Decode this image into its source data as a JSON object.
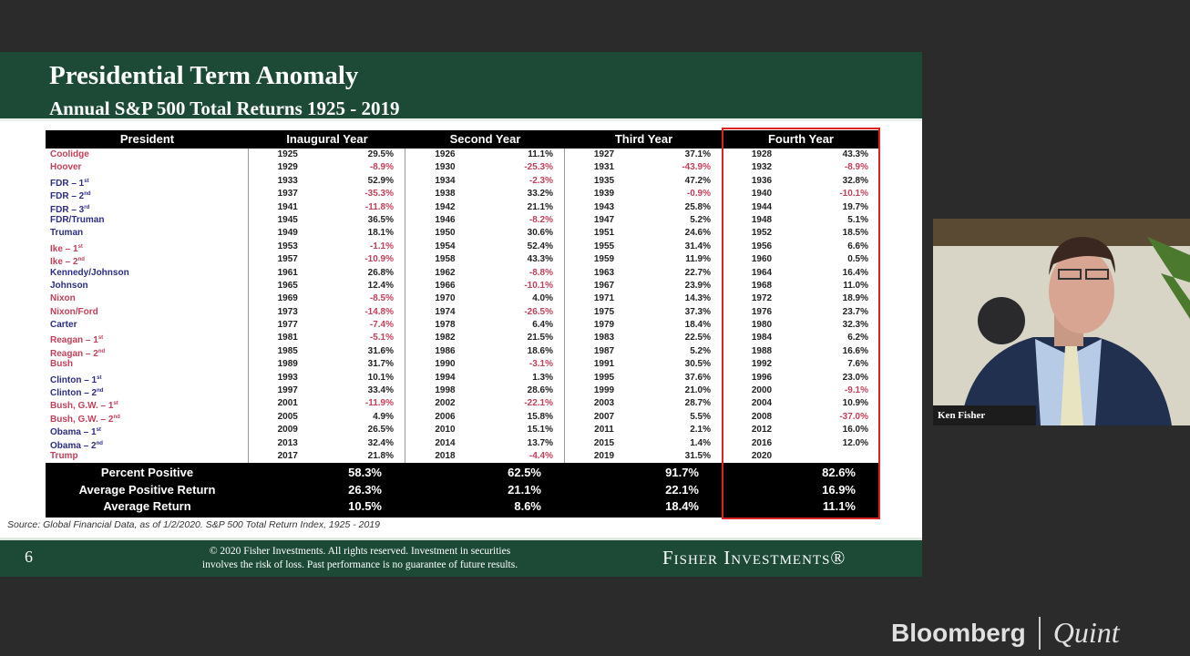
{
  "slide": {
    "title": "Presidential Term Anomaly",
    "subtitle": "Annual S&P 500 Total Returns 1925 - 2019",
    "headers": [
      "President",
      "Inaugural Year",
      "Second Year",
      "Third Year",
      "Fourth Year"
    ],
    "highlight_color": "#dd2222",
    "republican_color": "#c2405a",
    "democrat_color": "#2d2d85",
    "rows": [
      {
        "name": "Coolidge",
        "ord": "",
        "party": "R",
        "cells": [
          [
            "1925",
            "29.5%"
          ],
          [
            "1926",
            "11.1%"
          ],
          [
            "1927",
            "37.1%"
          ],
          [
            "1928",
            "43.3%"
          ]
        ]
      },
      {
        "name": "Hoover",
        "ord": "",
        "party": "R",
        "cells": [
          [
            "1929",
            "-8.9%"
          ],
          [
            "1930",
            "-25.3%"
          ],
          [
            "1931",
            "-43.9%"
          ],
          [
            "1932",
            "-8.9%"
          ]
        ]
      },
      {
        "name": "FDR – 1",
        "ord": "st",
        "party": "D",
        "cells": [
          [
            "1933",
            "52.9%"
          ],
          [
            "1934",
            "-2.3%"
          ],
          [
            "1935",
            "47.2%"
          ],
          [
            "1936",
            "32.8%"
          ]
        ]
      },
      {
        "name": "FDR – 2",
        "ord": "nd",
        "party": "D",
        "cells": [
          [
            "1937",
            "-35.3%"
          ],
          [
            "1938",
            "33.2%"
          ],
          [
            "1939",
            "-0.9%"
          ],
          [
            "1940",
            "-10.1%"
          ]
        ]
      },
      {
        "name": "FDR – 3",
        "ord": "rd",
        "party": "D",
        "cells": [
          [
            "1941",
            "-11.8%"
          ],
          [
            "1942",
            "21.1%"
          ],
          [
            "1943",
            "25.8%"
          ],
          [
            "1944",
            "19.7%"
          ]
        ]
      },
      {
        "name": "FDR/Truman",
        "ord": "",
        "party": "D",
        "cells": [
          [
            "1945",
            "36.5%"
          ],
          [
            "1946",
            "-8.2%"
          ],
          [
            "1947",
            "5.2%"
          ],
          [
            "1948",
            "5.1%"
          ]
        ]
      },
      {
        "name": "Truman",
        "ord": "",
        "party": "D",
        "cells": [
          [
            "1949",
            "18.1%"
          ],
          [
            "1950",
            "30.6%"
          ],
          [
            "1951",
            "24.6%"
          ],
          [
            "1952",
            "18.5%"
          ]
        ]
      },
      {
        "name": "Ike – 1",
        "ord": "st",
        "party": "R",
        "cells": [
          [
            "1953",
            "-1.1%"
          ],
          [
            "1954",
            "52.4%"
          ],
          [
            "1955",
            "31.4%"
          ],
          [
            "1956",
            "6.6%"
          ]
        ]
      },
      {
        "name": "Ike – 2",
        "ord": "nd",
        "party": "R",
        "cells": [
          [
            "1957",
            "-10.9%"
          ],
          [
            "1958",
            "43.3%"
          ],
          [
            "1959",
            "11.9%"
          ],
          [
            "1960",
            "0.5%"
          ]
        ]
      },
      {
        "name": "Kennedy/Johnson",
        "ord": "",
        "party": "D",
        "cells": [
          [
            "1961",
            "26.8%"
          ],
          [
            "1962",
            "-8.8%"
          ],
          [
            "1963",
            "22.7%"
          ],
          [
            "1964",
            "16.4%"
          ]
        ]
      },
      {
        "name": "Johnson",
        "ord": "",
        "party": "D",
        "cells": [
          [
            "1965",
            "12.4%"
          ],
          [
            "1966",
            "-10.1%"
          ],
          [
            "1967",
            "23.9%"
          ],
          [
            "1968",
            "11.0%"
          ]
        ]
      },
      {
        "name": "Nixon",
        "ord": "",
        "party": "R",
        "cells": [
          [
            "1969",
            "-8.5%"
          ],
          [
            "1970",
            "4.0%"
          ],
          [
            "1971",
            "14.3%"
          ],
          [
            "1972",
            "18.9%"
          ]
        ]
      },
      {
        "name": "Nixon/Ford",
        "ord": "",
        "party": "R",
        "cells": [
          [
            "1973",
            "-14.8%"
          ],
          [
            "1974",
            "-26.5%"
          ],
          [
            "1975",
            "37.3%"
          ],
          [
            "1976",
            "23.7%"
          ]
        ]
      },
      {
        "name": "Carter",
        "ord": "",
        "party": "D",
        "cells": [
          [
            "1977",
            "-7.4%"
          ],
          [
            "1978",
            "6.4%"
          ],
          [
            "1979",
            "18.4%"
          ],
          [
            "1980",
            "32.3%"
          ]
        ]
      },
      {
        "name": "Reagan – 1",
        "ord": "st",
        "party": "R",
        "cells": [
          [
            "1981",
            "-5.1%"
          ],
          [
            "1982",
            "21.5%"
          ],
          [
            "1983",
            "22.5%"
          ],
          [
            "1984",
            "6.2%"
          ]
        ]
      },
      {
        "name": "Reagan – 2",
        "ord": "nd",
        "party": "R",
        "cells": [
          [
            "1985",
            "31.6%"
          ],
          [
            "1986",
            "18.6%"
          ],
          [
            "1987",
            "5.2%"
          ],
          [
            "1988",
            "16.6%"
          ]
        ]
      },
      {
        "name": "Bush",
        "ord": "",
        "party": "R",
        "cells": [
          [
            "1989",
            "31.7%"
          ],
          [
            "1990",
            "-3.1%"
          ],
          [
            "1991",
            "30.5%"
          ],
          [
            "1992",
            "7.6%"
          ]
        ]
      },
      {
        "name": "Clinton – 1",
        "ord": "st",
        "party": "D",
        "cells": [
          [
            "1993",
            "10.1%"
          ],
          [
            "1994",
            "1.3%"
          ],
          [
            "1995",
            "37.6%"
          ],
          [
            "1996",
            "23.0%"
          ]
        ]
      },
      {
        "name": "Clinton – 2",
        "ord": "nd",
        "party": "D",
        "cells": [
          [
            "1997",
            "33.4%"
          ],
          [
            "1998",
            "28.6%"
          ],
          [
            "1999",
            "21.0%"
          ],
          [
            "2000",
            "-9.1%"
          ]
        ]
      },
      {
        "name": "Bush, G.W. – 1",
        "ord": "st",
        "party": "R",
        "cells": [
          [
            "2001",
            "-11.9%"
          ],
          [
            "2002",
            "-22.1%"
          ],
          [
            "2003",
            "28.7%"
          ],
          [
            "2004",
            "10.9%"
          ]
        ]
      },
      {
        "name": "Bush, G.W. – 2",
        "ord": "nd",
        "party": "R",
        "cells": [
          [
            "2005",
            "4.9%"
          ],
          [
            "2006",
            "15.8%"
          ],
          [
            "2007",
            "5.5%"
          ],
          [
            "2008",
            "-37.0%"
          ]
        ]
      },
      {
        "name": "Obama – 1",
        "ord": "st",
        "party": "D",
        "cells": [
          [
            "2009",
            "26.5%"
          ],
          [
            "2010",
            "15.1%"
          ],
          [
            "2011",
            "2.1%"
          ],
          [
            "2012",
            "16.0%"
          ]
        ]
      },
      {
        "name": "Obama – 2",
        "ord": "nd",
        "party": "D",
        "cells": [
          [
            "2013",
            "32.4%"
          ],
          [
            "2014",
            "13.7%"
          ],
          [
            "2015",
            "1.4%"
          ],
          [
            "2016",
            "12.0%"
          ]
        ]
      },
      {
        "name": "Trump",
        "ord": "",
        "party": "R",
        "cells": [
          [
            "2017",
            "21.8%"
          ],
          [
            "2018",
            "-4.4%"
          ],
          [
            "2019",
            "31.5%"
          ],
          [
            "2020",
            ""
          ]
        ]
      }
    ],
    "summary": [
      {
        "label": "Percent Positive",
        "values": [
          "58.3%",
          "62.5%",
          "91.7%",
          "82.6%"
        ]
      },
      {
        "label": "Average Positive Return",
        "values": [
          "26.3%",
          "21.1%",
          "22.1%",
          "16.9%"
        ]
      },
      {
        "label": "Average Return",
        "values": [
          "10.5%",
          "8.6%",
          "18.4%",
          "11.1%"
        ]
      }
    ],
    "source": "Source: Global Financial Data, as of 1/2/2020. S&P 500 Total Return Index, 1925 - 2019",
    "page_number": "6",
    "copyright_line1": "© 2020 Fisher Investments. All rights reserved. Investment in securities",
    "copyright_line2": "involves the risk of loss. Past performance is no guarantee of future results.",
    "brand": "Fisher Investments®"
  },
  "webcam": {
    "name": "Ken Fisher"
  },
  "watermark": {
    "left": "Bloomberg",
    "right": "Quint"
  }
}
